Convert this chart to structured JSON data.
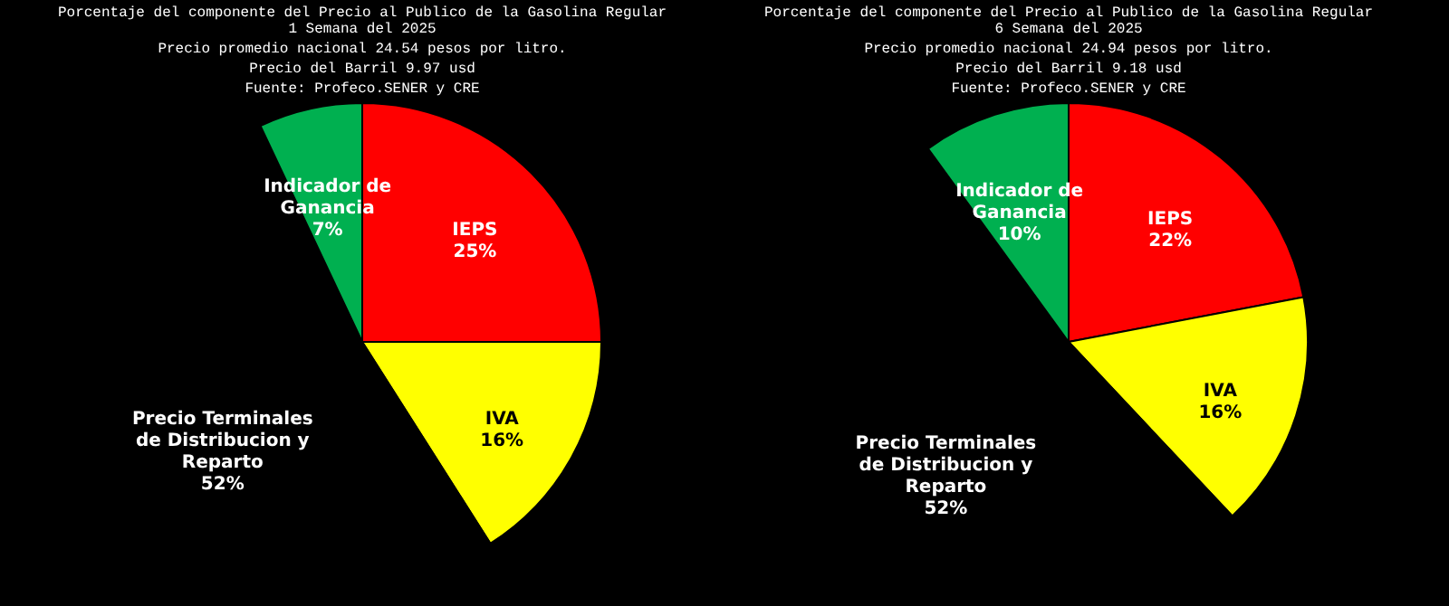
{
  "chart_data": [
    {
      "type": "pie",
      "title": "Porcentaje del componente del Precio al Publico  de la Gasolina Regular",
      "subtitle": "1 Semana del 2025\nPrecio promedio nacional 24.54 pesos por litro.\nPrecio del Barril 9.97 usd",
      "annotations": [
        "Fuente: Profeco.SENER y CRE"
      ],
      "categories": [
        "IEPS",
        "IVA",
        "Precio Terminales de Distribucion y Reparto",
        "Indicador de Ganancia"
      ],
      "values": [
        25,
        16,
        52,
        7
      ],
      "value_labels": [
        "25%",
        "16%",
        "52%",
        "7%"
      ],
      "colors": [
        "#ff0000",
        "#ffff00",
        "#000000",
        "#00b050"
      ],
      "legend": false
    },
    {
      "type": "pie",
      "title": "Porcentaje del componente del Precio al Publico  de la Gasolina Regular",
      "subtitle": "6 Semana del 2025\nPrecio promedio nacional 24.94 pesos por litro.\nPrecio del Barril 9.18 usd",
      "annotations": [
        "Fuente: Profeco.SENER y CRE"
      ],
      "categories": [
        "IEPS",
        "IVA",
        "Precio Terminales de Distribucion y Reparto",
        "Indicador de Ganancia"
      ],
      "values": [
        22,
        16,
        52,
        10
      ],
      "value_labels": [
        "22%",
        "16%",
        "52%",
        "10%"
      ],
      "colors": [
        "#ff0000",
        "#ffff00",
        "#000000",
        "#00b050"
      ],
      "legend": false
    }
  ]
}
